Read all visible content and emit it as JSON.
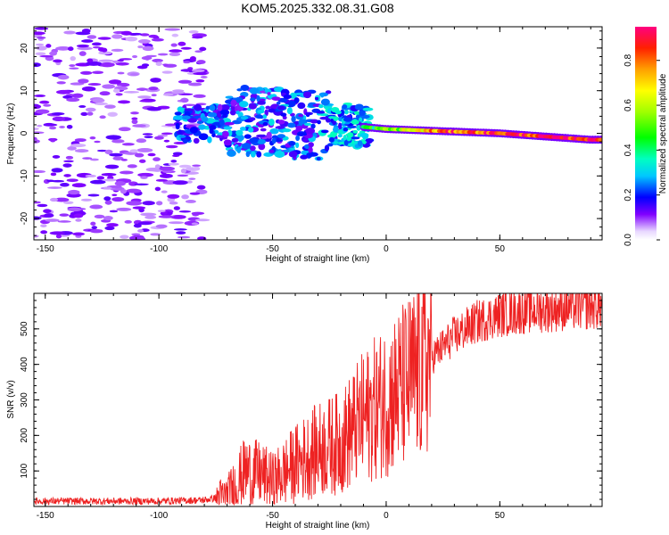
{
  "title": "KOM5.2025.332.08.31.G08",
  "chart_data": [
    {
      "type": "heatmap",
      "xlabel": "Height of straight line (km)",
      "ylabel": "Frequency (Hz)",
      "xlim": [
        -155,
        95
      ],
      "ylim": [
        -25,
        25
      ],
      "xticks": [
        -150,
        -100,
        -50,
        0,
        50
      ],
      "yticks": [
        -20,
        -10,
        0,
        10,
        20
      ],
      "colorbar": {
        "label": "Normalized spectral amplitude",
        "range": [
          0,
          0.95
        ],
        "ticks": [
          0.0,
          0.2,
          0.4,
          0.6,
          0.8
        ]
      },
      "description_points": [
        {
          "x": -150,
          "f": 0,
          "amp": 0.05
        },
        {
          "x": -60,
          "f": 3,
          "amp": 0.2
        },
        {
          "x": -40,
          "f": 2,
          "amp": 0.25
        },
        {
          "x": -20,
          "f": 2,
          "amp": 0.3
        },
        {
          "x": 0,
          "f": 1,
          "amp": 0.5
        },
        {
          "x": 25,
          "f": 0.5,
          "amp": 0.8
        },
        {
          "x": 50,
          "f": 0,
          "amp": 0.85
        },
        {
          "x": 90,
          "f": -1.5,
          "amp": 0.9
        }
      ]
    },
    {
      "type": "line",
      "xlabel": "Height of straight line (km)",
      "ylabel": "SNR (v/v)",
      "xlim": [
        -155,
        95
      ],
      "ylim": [
        0,
        600
      ],
      "xticks": [
        -150,
        -100,
        -50,
        0,
        50
      ],
      "yticks": [
        100,
        200,
        300,
        400,
        500
      ],
      "color": "#ee2222",
      "trend": {
        "x": [
          -155,
          -100,
          -80,
          -70,
          -62,
          -55,
          -50,
          -40,
          -30,
          -20,
          -10,
          0,
          10,
          20,
          30,
          40,
          50,
          60,
          70,
          80,
          95
        ],
        "y": [
          15,
          15,
          18,
          30,
          100,
          90,
          70,
          120,
          160,
          180,
          250,
          300,
          350,
          420,
          480,
          520,
          540,
          550,
          555,
          560,
          565
        ]
      }
    }
  ]
}
